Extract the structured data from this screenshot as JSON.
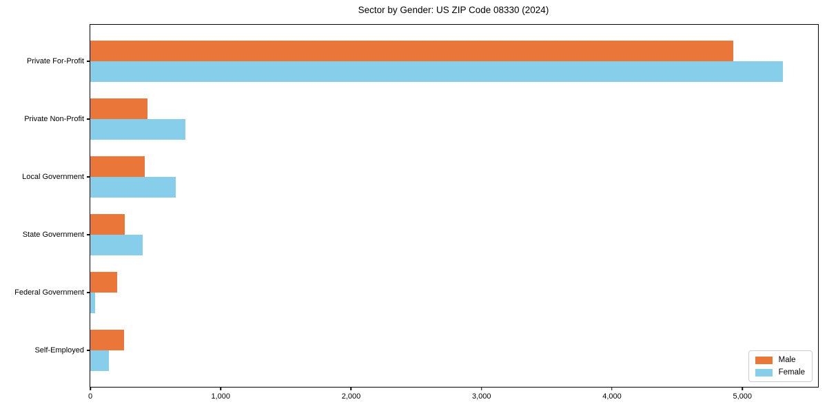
{
  "chart_data": {
    "type": "bar",
    "orientation": "horizontal",
    "title": "Sector by Gender: US ZIP Code 08330 (2024)",
    "categories": [
      "Private For-Profit",
      "Private Non-Profit",
      "Local Government",
      "State Government",
      "Federal Government",
      "Self-Employed"
    ],
    "series": [
      {
        "name": "Male",
        "color": "#EB7639",
        "values": [
          4930,
          440,
          420,
          265,
          205,
          260
        ]
      },
      {
        "name": "Female",
        "color": "#87CEEB",
        "values": [
          5310,
          730,
          655,
          400,
          37,
          145
        ]
      }
    ],
    "xlabel": "",
    "ylabel": "",
    "xlim": [
      0,
      5580
    ],
    "x_ticks": [
      0,
      1000,
      2000,
      3000,
      4000,
      5000
    ],
    "x_tick_labels": [
      "0",
      "1,000",
      "2,000",
      "3,000",
      "4,000",
      "5,000"
    ],
    "legend": {
      "position": "lower right",
      "entries": [
        "Male",
        "Female"
      ]
    },
    "grid": false,
    "background_color": "#ffffff",
    "axis_color": "#000000"
  }
}
